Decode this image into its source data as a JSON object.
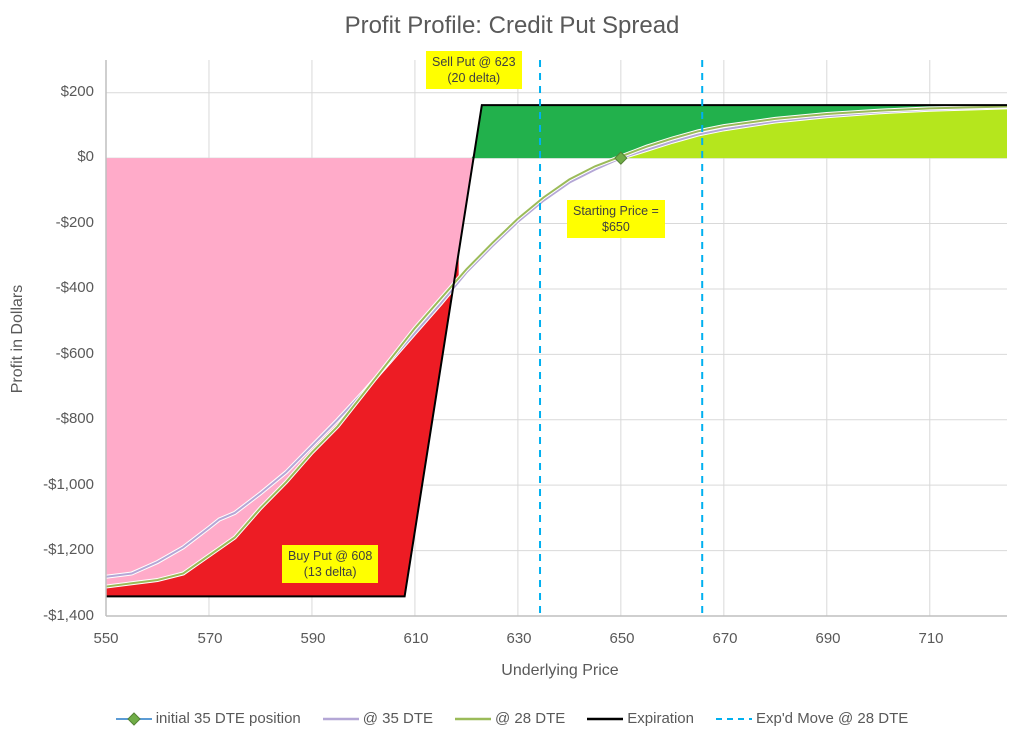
{
  "chart_data": {
    "type": "line",
    "title": "Profit Profile: Credit Put Spread",
    "xlabel": "Underlying Price",
    "ylabel": "Profit in Dollars",
    "xlim": [
      550,
      725
    ],
    "ylim": [
      -1400,
      300
    ],
    "x_ticks": [
      550,
      570,
      590,
      610,
      630,
      650,
      670,
      690,
      710
    ],
    "x_tick_labels": [
      "550",
      "570",
      "590",
      "610",
      "630",
      "650",
      "670",
      "690",
      "710"
    ],
    "y_ticks": [
      200,
      0,
      -200,
      -400,
      -600,
      -800,
      -1000,
      -1200,
      -1400
    ],
    "y_tick_labels": [
      "$200",
      "$0",
      "-$200",
      "-$400",
      "-$600",
      "-$800",
      "-$1,000",
      "-$1,200",
      "-$1,400"
    ],
    "grid": true,
    "legend_position": "bottom",
    "series": [
      {
        "name": "initial 35 DTE position",
        "type": "scatter",
        "color": "#5b9bd5",
        "marker_color": "#70ad47",
        "x": [
          650
        ],
        "y": [
          0
        ]
      },
      {
        "name": "@ 35 DTE",
        "type": "line",
        "color": "#b4a7d6",
        "x": [
          550,
          555,
          560,
          565,
          570,
          572,
          575,
          580,
          585,
          590,
          595,
          600,
          605,
          610,
          615,
          620,
          625,
          630,
          635,
          640,
          645,
          650,
          655,
          660,
          665,
          670,
          680,
          690,
          700,
          710,
          725
        ],
        "y": [
          -1280,
          -1270,
          -1235,
          -1190,
          -1130,
          -1105,
          -1085,
          -1025,
          -960,
          -880,
          -800,
          -715,
          -625,
          -535,
          -445,
          -350,
          -270,
          -195,
          -130,
          -75,
          -35,
          0,
          25,
          50,
          72,
          88,
          112,
          128,
          140,
          148,
          155
        ]
      },
      {
        "name": "@ 28 DTE",
        "type": "line",
        "color": "#9bbb59",
        "x": [
          550,
          555,
          560,
          565,
          570,
          575,
          580,
          585,
          590,
          595,
          600,
          605,
          610,
          615,
          620,
          625,
          630,
          635,
          640,
          645,
          650,
          655,
          660,
          665,
          670,
          680,
          690,
          700,
          710,
          725
        ],
        "y": [
          -1310,
          -1300,
          -1290,
          -1270,
          -1215,
          -1160,
          -1070,
          -990,
          -900,
          -820,
          -720,
          -620,
          -520,
          -430,
          -340,
          -260,
          -185,
          -120,
          -65,
          -25,
          5,
          35,
          60,
          82,
          98,
          120,
          135,
          145,
          152,
          158
        ]
      },
      {
        "name": "Expiration",
        "type": "line",
        "color": "#000000",
        "x": [
          550,
          608,
          623,
          725
        ],
        "y": [
          -1340,
          -1340,
          162,
          162
        ]
      },
      {
        "name": "Exp'd Move @ 28 DTE",
        "type": "vline",
        "color": "#00b0f0",
        "style": "dashed",
        "x": [
          634.3,
          665.8
        ]
      }
    ],
    "shaded_regions": [
      {
        "name": "max-loss-zone",
        "color": "#ffabc9",
        "description": "below $0 from 550 to breakeven, above expiration"
      },
      {
        "name": "expiration-loss",
        "color": "#ed1c24",
        "description": "between 28 DTE curve and expiration line, loss side"
      },
      {
        "name": "expiration-profit",
        "color": "#22b14c",
        "description": "between expiration line and 28 DTE curve, profit side"
      },
      {
        "name": "28dte-profit",
        "color": "#b5e61d",
        "description": "between 28 DTE curve and $0, profit side"
      }
    ],
    "annotations": [
      {
        "text": "Sell Put @ 623\n(20 delta)",
        "x": 623,
        "y": 280
      },
      {
        "text": "Buy Put @ 608\n(13 delta)",
        "x": 595,
        "y": -1250
      },
      {
        "text": "Starting Price =\n$650",
        "x": 652,
        "y": -190
      }
    ]
  },
  "labels": {
    "title": "Profit Profile: Credit Put Spread",
    "xlabel": "Underlying Price",
    "ylabel": "Profit in Dollars",
    "callout_sell_1": "Sell Put @ 623",
    "callout_sell_2": "(20 delta)",
    "callout_buy_1": "Buy Put @ 608",
    "callout_buy_2": "(13 delta)",
    "callout_start_1": "Starting Price =",
    "callout_start_2": "$650"
  },
  "legend": {
    "items": [
      {
        "label": "initial 35 DTE position"
      },
      {
        "label": "@ 35 DTE"
      },
      {
        "label": "@ 28 DTE"
      },
      {
        "label": "Expiration"
      },
      {
        "label": "Exp'd Move @ 28 DTE"
      }
    ]
  },
  "colors": {
    "grid": "#d9d9d9",
    "axis": "#bfbfbf",
    "pink": "#ffabc9",
    "red": "#ed1c24",
    "dark_green": "#22b14c",
    "lime": "#b5e61d",
    "callout": "#ffff00",
    "dashed": "#00b0f0"
  }
}
